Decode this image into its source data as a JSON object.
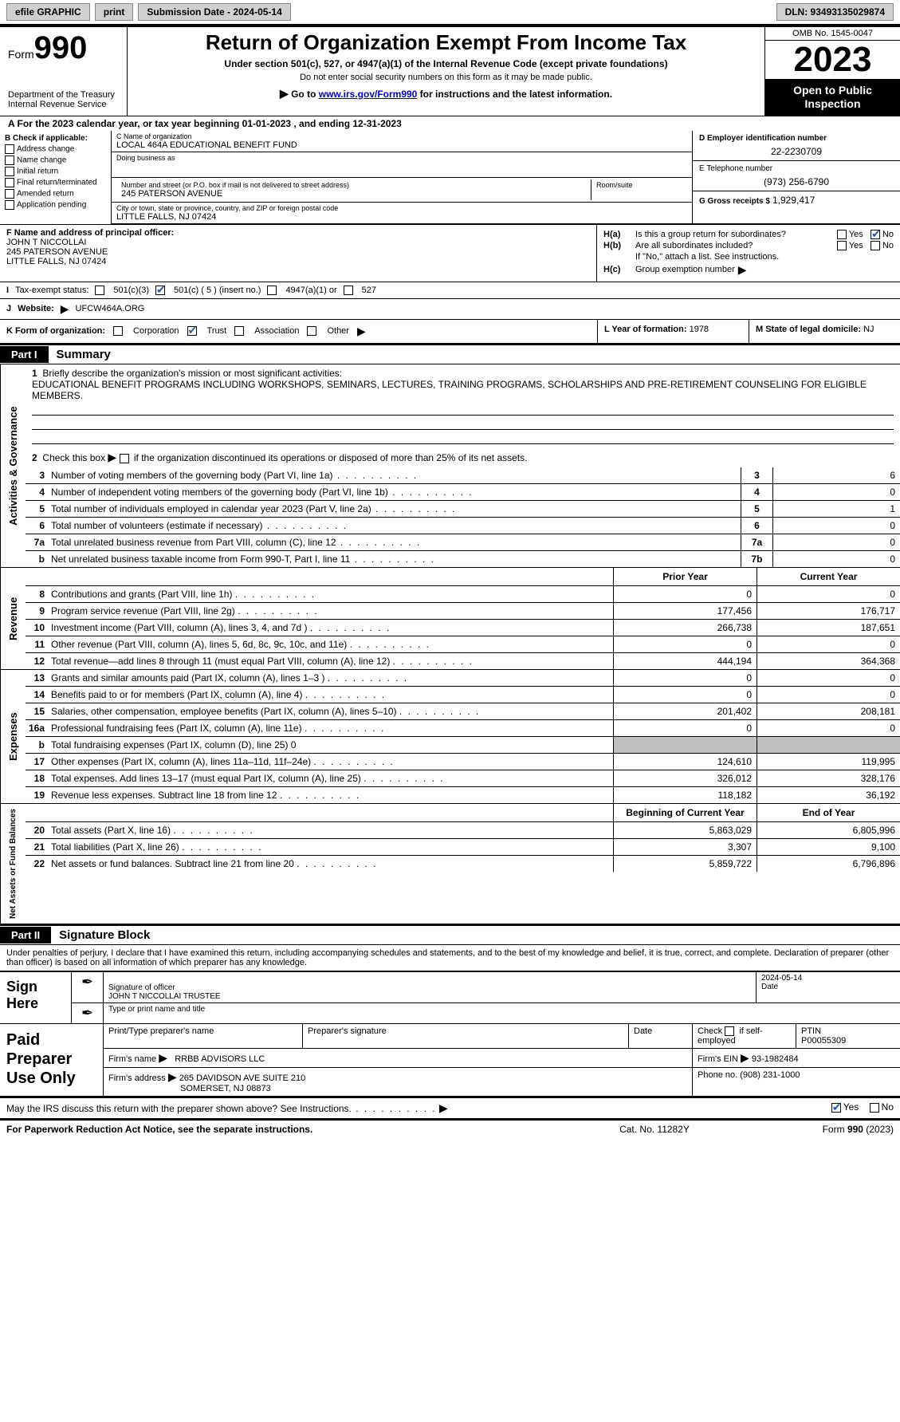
{
  "topbar": {
    "efile": "efile GRAPHIC",
    "print": "print",
    "submission": "Submission Date - 2024-05-14",
    "dln": "DLN: 93493135029874"
  },
  "header": {
    "form_prefix": "Form",
    "form_number": "990",
    "dept": "Department of the Treasury\nInternal Revenue Service",
    "title": "Return of Organization Exempt From Income Tax",
    "sub1": "Under section 501(c), 527, or 4947(a)(1) of the Internal Revenue Code (except private foundations)",
    "sub2": "Do not enter social security numbers on this form as it may be made public.",
    "sub3_prefix": "Go to ",
    "sub3_link": "www.irs.gov/Form990",
    "sub3_suffix": " for instructions and the latest information.",
    "omb": "OMB No. 1545-0047",
    "year": "2023",
    "open_pub": "Open to Public Inspection"
  },
  "rowA": "A For the 2023 calendar year, or tax year beginning 01-01-2023   , and ending 12-31-2023",
  "colB": {
    "hdr": "B Check if applicable:",
    "items": [
      "Address change",
      "Name change",
      "Initial return",
      "Final return/terminated",
      "Amended return",
      "Application pending"
    ]
  },
  "colC": {
    "name_lbl": "C Name of organization",
    "name_val": "LOCAL 464A EDUCATIONAL BENEFIT FUND",
    "dba_lbl": "Doing business as",
    "dba_val": "",
    "street_lbl": "Number and street (or P.O. box if mail is not delivered to street address)",
    "street_val": "245 PATERSON AVENUE",
    "room_lbl": "Room/suite",
    "city_lbl": "City or town, state or province, country, and ZIP or foreign postal code",
    "city_val": "LITTLE FALLS, NJ  07424"
  },
  "colD": {
    "ein_lbl": "D Employer identification number",
    "ein_val": "22-2230709",
    "phone_lbl": "E Telephone number",
    "phone_val": "(973) 256-6790",
    "gross_lbl": "G Gross receipts $",
    "gross_val": "1,929,417"
  },
  "rowF": {
    "lbl": "F  Name and address of principal officer:",
    "name": "JOHN T NICCOLLAI",
    "addr1": "245 PATERSON AVENUE",
    "addr2": "LITTLE FALLS, NJ  07424"
  },
  "rowH": {
    "ha_lbl": "H(a)",
    "ha_txt": "Is this a group return for subordinates?",
    "hb_lbl": "H(b)",
    "hb_txt": "Are all subordinates included?",
    "hb_note": "If \"No,\" attach a list. See instructions.",
    "hc_lbl": "H(c)",
    "hc_txt": "Group exemption number",
    "arrow": "▶",
    "yes": "Yes",
    "no": "No"
  },
  "rowI": {
    "lbl": "I",
    "txt": "Tax-exempt status:",
    "o1": "501(c)(3)",
    "o2": "501(c) ( 5 ) (insert no.)",
    "o3": "4947(a)(1) or",
    "o4": "527"
  },
  "rowJ": {
    "lbl": "J",
    "txt": "Website:",
    "arrow": "▶",
    "val": "UFCW464A.ORG"
  },
  "rowK": {
    "lbl": "K Form of organization:",
    "o1": "Corporation",
    "o2": "Trust",
    "o3": "Association",
    "o4": "Other",
    "l_lbl": "L Year of formation:",
    "l_val": "1978",
    "m_lbl": "M State of legal domicile:",
    "m_val": "NJ"
  },
  "part1_hdr": "Part I",
  "part1_title": "Summary",
  "vtabs": {
    "ag": "Activities & Governance",
    "rev": "Revenue",
    "exp": "Expenses",
    "na": "Net Assets or Fund Balances"
  },
  "mission": {
    "line1_lbl": "1",
    "line1_txt": "Briefly describe the organization's mission or most significant activities:",
    "line1_val": "EDUCATIONAL BENEFIT PROGRAMS INCLUDING WORKSHOPS, SEMINARS, LECTURES, TRAINING PROGRAMS, SCHOLARSHIPS AND PRE-RETIREMENT COUNSELING FOR ELIGIBLE MEMBERS.",
    "line2_lbl": "2",
    "line2_txt": "Check this box        if the organization discontinued its operations or disposed of more than 25% of its net assets."
  },
  "ag_lines": [
    {
      "n": "3",
      "t": "Number of voting members of the governing body (Part VI, line 1a)",
      "b": "3",
      "v": "6"
    },
    {
      "n": "4",
      "t": "Number of independent voting members of the governing body (Part VI, line 1b)",
      "b": "4",
      "v": "0"
    },
    {
      "n": "5",
      "t": "Total number of individuals employed in calendar year 2023 (Part V, line 2a)",
      "b": "5",
      "v": "1"
    },
    {
      "n": "6",
      "t": "Total number of volunteers (estimate if necessary)",
      "b": "6",
      "v": "0"
    },
    {
      "n": "7a",
      "t": "Total unrelated business revenue from Part VIII, column (C), line 12",
      "b": "7a",
      "v": "0"
    },
    {
      "n": "b",
      "t": "Net unrelated business taxable income from Form 990-T, Part I, line 11",
      "b": "7b",
      "v": "0"
    }
  ],
  "col_hdrs": {
    "prior": "Prior Year",
    "current": "Current Year",
    "boy": "Beginning of Current Year",
    "eoy": "End of Year"
  },
  "rev_lines": [
    {
      "n": "8",
      "t": "Contributions and grants (Part VIII, line 1h)",
      "p": "0",
      "c": "0"
    },
    {
      "n": "9",
      "t": "Program service revenue (Part VIII, line 2g)",
      "p": "177,456",
      "c": "176,717"
    },
    {
      "n": "10",
      "t": "Investment income (Part VIII, column (A), lines 3, 4, and 7d )",
      "p": "266,738",
      "c": "187,651"
    },
    {
      "n": "11",
      "t": "Other revenue (Part VIII, column (A), lines 5, 6d, 8c, 9c, 10c, and 11e)",
      "p": "0",
      "c": "0"
    },
    {
      "n": "12",
      "t": "Total revenue—add lines 8 through 11 (must equal Part VIII, column (A), line 12)",
      "p": "444,194",
      "c": "364,368"
    }
  ],
  "exp_lines": [
    {
      "n": "13",
      "t": "Grants and similar amounts paid (Part IX, column (A), lines 1–3 )",
      "p": "0",
      "c": "0"
    },
    {
      "n": "14",
      "t": "Benefits paid to or for members (Part IX, column (A), line 4)",
      "p": "0",
      "c": "0"
    },
    {
      "n": "15",
      "t": "Salaries, other compensation, employee benefits (Part IX, column (A), lines 5–10)",
      "p": "201,402",
      "c": "208,181"
    },
    {
      "n": "16a",
      "t": "Professional fundraising fees (Part IX, column (A), line 11e)",
      "p": "0",
      "c": "0"
    },
    {
      "n": "b",
      "t": "Total fundraising expenses (Part IX, column (D), line 25) 0",
      "p": "",
      "c": "",
      "grey": true
    },
    {
      "n": "17",
      "t": "Other expenses (Part IX, column (A), lines 11a–11d, 11f–24e)",
      "p": "124,610",
      "c": "119,995"
    },
    {
      "n": "18",
      "t": "Total expenses. Add lines 13–17 (must equal Part IX, column (A), line 25)",
      "p": "326,012",
      "c": "328,176"
    },
    {
      "n": "19",
      "t": "Revenue less expenses. Subtract line 18 from line 12",
      "p": "118,182",
      "c": "36,192"
    }
  ],
  "na_lines": [
    {
      "n": "20",
      "t": "Total assets (Part X, line 16)",
      "p": "5,863,029",
      "c": "6,805,996"
    },
    {
      "n": "21",
      "t": "Total liabilities (Part X, line 26)",
      "p": "3,307",
      "c": "9,100"
    },
    {
      "n": "22",
      "t": "Net assets or fund balances. Subtract line 21 from line 20",
      "p": "5,859,722",
      "c": "6,796,896"
    }
  ],
  "part2_hdr": "Part II",
  "part2_title": "Signature Block",
  "sig_decl": "Under penalties of perjury, I declare that I have examined this return, including accompanying schedules and statements, and to the best of my knowledge and belief, it is true, correct, and complete. Declaration of preparer (other than officer) is based on all information of which preparer has any knowledge.",
  "sign": {
    "here": "Sign Here",
    "sig_lbl": "Signature of officer",
    "sig_name": "JOHN T NICCOLLAI  TRUSTEE",
    "date_val": "2024-05-14",
    "date_lbl": "Date",
    "type_lbl": "Type or print name and title"
  },
  "paid": {
    "hdr": "Paid Preparer Use Only",
    "c1": "Print/Type preparer's name",
    "c2": "Preparer's signature",
    "c3": "Date",
    "c4a": "Check",
    "c4b": "if self-employed",
    "c5_lbl": "PTIN",
    "c5_val": "P00055309",
    "firm_name_lbl": "Firm's name",
    "firm_name_val": "RRBB ADVISORS LLC",
    "firm_ein_lbl": "Firm's EIN",
    "firm_ein_val": "93-1982484",
    "firm_addr_lbl": "Firm's address",
    "firm_addr_val1": "265 DAVIDSON AVE SUITE 210",
    "firm_addr_val2": "SOMERSET, NJ  08873",
    "phone_lbl": "Phone no.",
    "phone_val": "(908) 231-1000"
  },
  "discuss": {
    "txt": "May the IRS discuss this return with the preparer shown above? See Instructions.",
    "yes": "Yes",
    "no": "No"
  },
  "footer": {
    "l": "For Paperwork Reduction Act Notice, see the separate instructions.",
    "m": "Cat. No. 11282Y",
    "r": "Form 990 (2023)"
  }
}
